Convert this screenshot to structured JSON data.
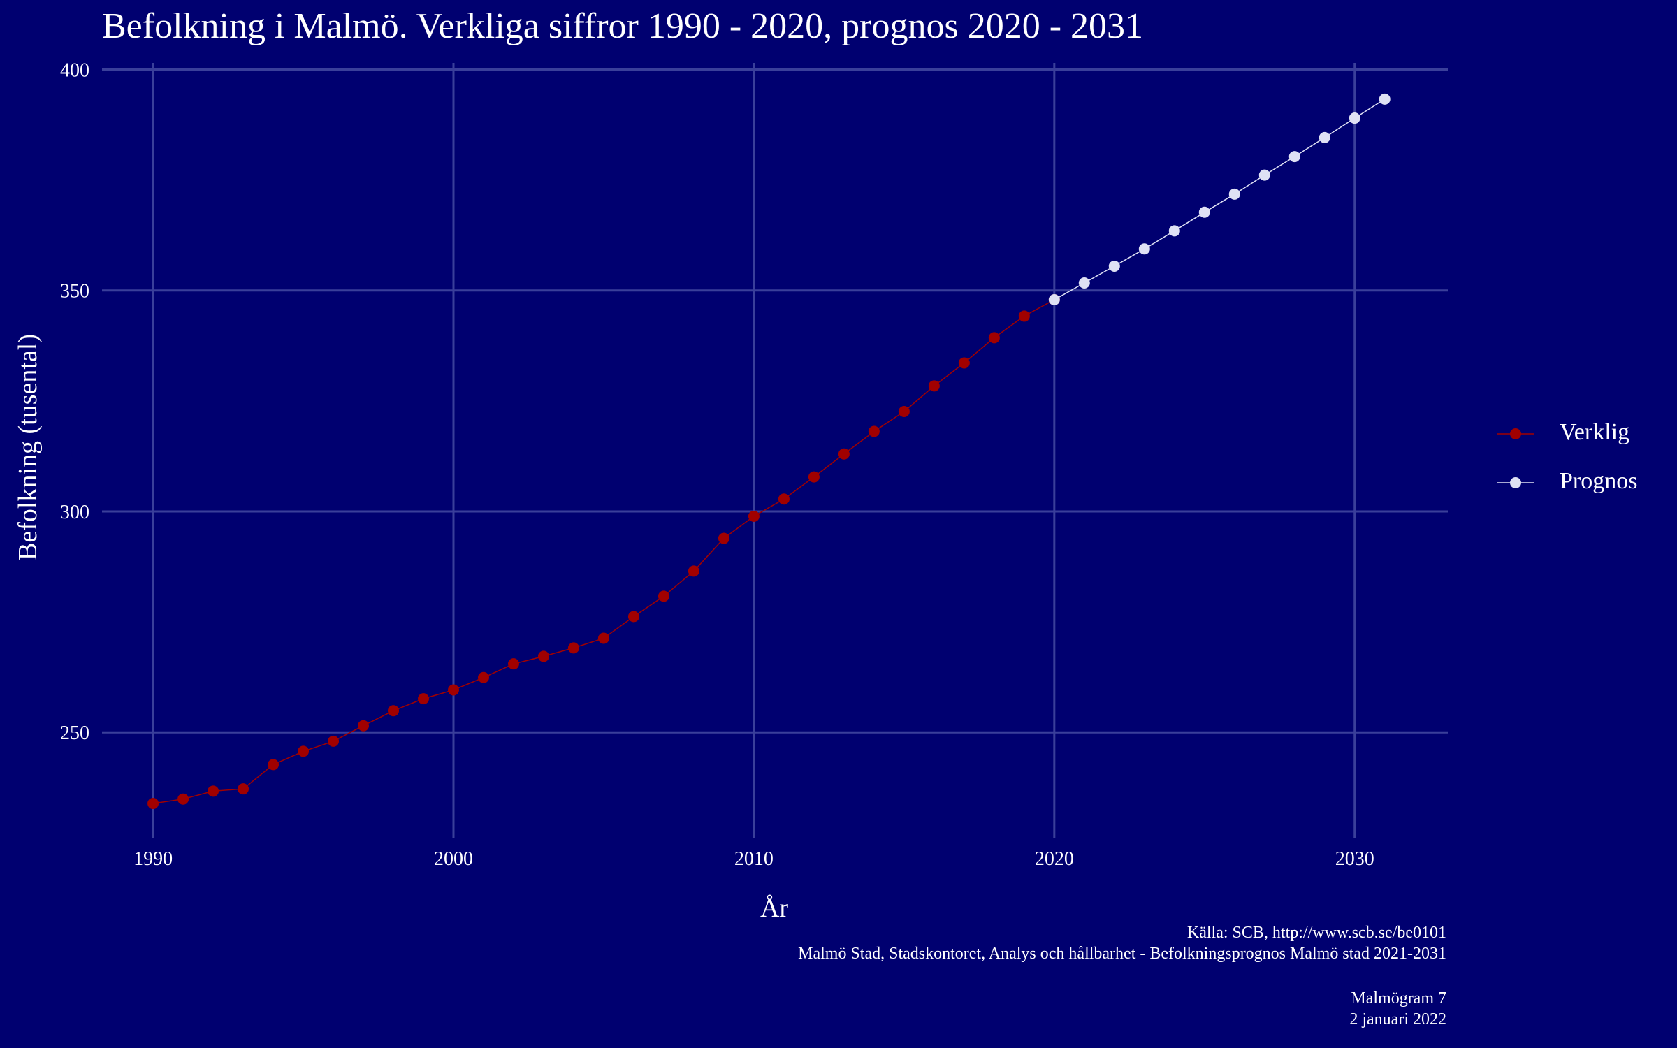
{
  "title": "Befolkning i Malmö. Verkliga siffror 1990 - 2020, prognos 2020 - 2031",
  "caption": {
    "line1": "Källa: SCB, http://www.scb.se/be0101",
    "line2": "Malmö Stad, Stadskontoret, Analys och hållbarhet - Befolkningsprognos Malmö stad 2021-2031",
    "line3": "Malmögram 7",
    "line4": "2 januari 2022"
  },
  "legend": {
    "items": [
      {
        "label": "Verklig"
      },
      {
        "label": "Prognos"
      }
    ]
  },
  "colors": {
    "background": "#000070",
    "grid": "#3a3f9a",
    "actual": "#a10000",
    "forecast": "#dfe1f4",
    "text": "#ffffff"
  },
  "chart_data": {
    "type": "line",
    "title": "Befolkning i Malmö. Verkliga siffror 1990 - 2020, prognos 2020 - 2031",
    "xlabel": "År",
    "ylabel": "Befolkning (tusental)",
    "xlim": [
      1988.3,
      2033.1
    ],
    "ylim": [
      226,
      401.5
    ],
    "xticks": [
      1990,
      2000,
      2010,
      2020,
      2030
    ],
    "yticks": [
      250,
      300,
      350,
      400
    ],
    "grid": true,
    "legend_position": "right",
    "series": [
      {
        "name": "Verklig",
        "color": "#a10000",
        "x": [
          1990,
          1991,
          1992,
          1993,
          1994,
          1995,
          1996,
          1997,
          1998,
          1999,
          2000,
          2001,
          2002,
          2003,
          2004,
          2005,
          2006,
          2007,
          2008,
          2009,
          2010,
          2011,
          2012,
          2013,
          2014,
          2015,
          2016,
          2017,
          2018,
          2019,
          2020
        ],
        "values": [
          233.9,
          234.9,
          236.7,
          237.2,
          242.7,
          245.7,
          248.0,
          251.5,
          254.9,
          257.6,
          259.6,
          262.4,
          265.5,
          267.2,
          269.1,
          271.3,
          276.2,
          280.8,
          286.5,
          293.9,
          298.9,
          302.8,
          307.8,
          313.0,
          318.1,
          322.6,
          328.4,
          333.6,
          339.3,
          344.2,
          347.9
        ]
      },
      {
        "name": "Prognos",
        "color": "#dfe1f4",
        "x": [
          2020,
          2021,
          2022,
          2023,
          2024,
          2025,
          2026,
          2027,
          2028,
          2029,
          2030,
          2031
        ],
        "values": [
          347.9,
          351.7,
          355.5,
          359.4,
          363.5,
          367.7,
          371.8,
          376.1,
          380.3,
          384.6,
          389.0,
          393.3
        ]
      }
    ]
  }
}
